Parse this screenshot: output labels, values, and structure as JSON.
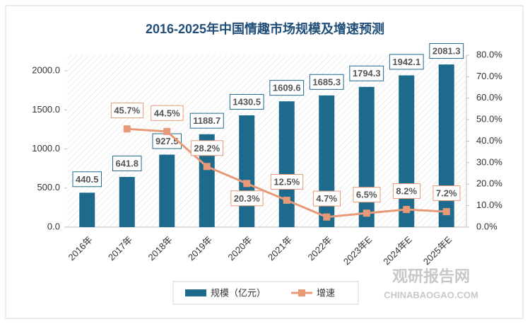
{
  "chart_data": {
    "type": "bar-line",
    "title": "2016-2025年中国情趣市场规模及增速预测",
    "categories": [
      "2016年",
      "2017年",
      "2018年",
      "2019年",
      "2020年",
      "2021年",
      "2022年",
      "2023年E",
      "2024年E",
      "2025年E"
    ],
    "series": [
      {
        "name": "规模（亿元）",
        "type": "bar",
        "color": "#1d6a8c",
        "values": [
          440.5,
          641.8,
          927.5,
          1188.7,
          1430.5,
          1609.6,
          1685.3,
          1794.3,
          1942.1,
          2081.3
        ]
      },
      {
        "name": "增速",
        "type": "line",
        "axis": "y2",
        "color": "#e89a78",
        "values": [
          null,
          45.7,
          44.5,
          28.2,
          20.3,
          12.5,
          4.7,
          6.5,
          8.2,
          7.2
        ],
        "value_labels": [
          null,
          "45.7%",
          "44.5%",
          "28.2%",
          "20.3%",
          "12.5%",
          "4.7%",
          "6.5%",
          "8.2%",
          "7.2%"
        ]
      }
    ],
    "ylim": [
      0,
      2200
    ],
    "yticks": [
      {
        "value": 0,
        "label": "0.0"
      },
      {
        "value": 500,
        "label": "500.0"
      },
      {
        "value": 1000,
        "label": "1000.0"
      },
      {
        "value": 1500,
        "label": "1500.0"
      },
      {
        "value": 2000,
        "label": "2000.0"
      }
    ],
    "y2lim": [
      0,
      80
    ],
    "y2ticks": [
      {
        "value": 0,
        "label": "0.0%"
      },
      {
        "value": 10,
        "label": "10.0%"
      },
      {
        "value": 20,
        "label": "20.0%"
      },
      {
        "value": 30,
        "label": "30.0%"
      },
      {
        "value": 40,
        "label": "40.0%"
      },
      {
        "value": 50,
        "label": "50.0%"
      },
      {
        "value": 60,
        "label": "60.0%"
      },
      {
        "value": 70,
        "label": "70.0%"
      },
      {
        "value": 80,
        "label": "80.0%"
      }
    ],
    "watermark": {
      "title": "观研报告网",
      "url": "CHINABAOGAO.COM"
    }
  }
}
